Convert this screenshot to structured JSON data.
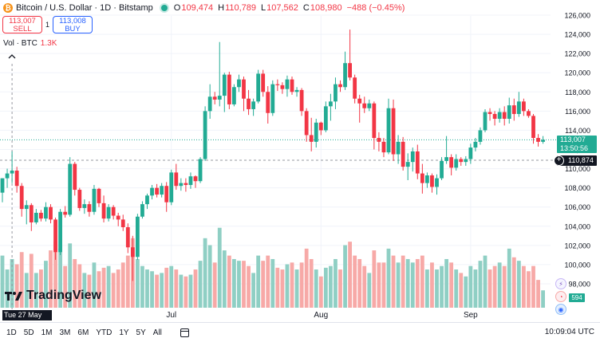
{
  "header": {
    "logo_letter": "₿",
    "symbol": "Bitcoin / U.S. Dollar · 1D · Bitstamp",
    "o_label": "O",
    "o_value": "109,474",
    "h_label": "H",
    "h_value": "110,789",
    "l_label": "L",
    "l_value": "107,562",
    "c_label": "C",
    "c_value": "108,980",
    "change": "−488 (−0.45%)"
  },
  "trade": {
    "sell_price": "113,007",
    "sell_label": "SELL",
    "spread": "1",
    "buy_price": "113,008",
    "buy_label": "BUY"
  },
  "volume_legend": {
    "label": "Vol · BTC",
    "value": "1.3K"
  },
  "crosshair_date": "Tue 27 May '25",
  "logo_text": "TradingView",
  "price_badges": {
    "last_price": "113,007",
    "countdown": "13:50:56",
    "crosshair_price": "110,874",
    "volume": "594"
  },
  "time_ranges": [
    "1D",
    "5D",
    "1M",
    "3M",
    "6M",
    "YTD",
    "1Y",
    "5Y",
    "All"
  ],
  "clock": "10:09:04 UTC",
  "colors": {
    "up": "#22ab94",
    "down": "#f23645",
    "up_vol": "#8fcfc4",
    "down_vol": "#f7a9a7"
  },
  "chart_data": {
    "type": "candlestick",
    "y_ticks": [
      98000,
      100000,
      102000,
      104000,
      106000,
      108000,
      110000,
      112000,
      114000,
      116000,
      118000,
      120000,
      122000,
      124000,
      126000
    ],
    "y_tick_labels": [
      "98,000",
      "100,000",
      "102,000",
      "104,000",
      "106,000",
      "108,000",
      "110,000",
      "112,000",
      "114,000",
      "116,000",
      "118,000",
      "120,000",
      "122,000",
      "124,000",
      "126,000"
    ],
    "x_labels": [
      {
        "label": "Jul",
        "index": 35
      },
      {
        "label": "Aug",
        "index": 66
      },
      {
        "label": "Sep",
        "index": 97
      }
    ],
    "crosshair_index": 2,
    "crosshair_price": 110874,
    "last_price": 113007,
    "candles": [
      {
        "o": 107500,
        "h": 109000,
        "l": 106500,
        "c": 109000,
        "v": 30
      },
      {
        "o": 109000,
        "h": 110000,
        "l": 108000,
        "c": 109500,
        "v": 22
      },
      {
        "o": 109500,
        "h": 111800,
        "l": 108500,
        "c": 109800,
        "v": 28
      },
      {
        "o": 109800,
        "h": 110200,
        "l": 107500,
        "c": 108200,
        "v": 25
      },
      {
        "o": 108200,
        "h": 108500,
        "l": 105000,
        "c": 105800,
        "v": 32
      },
      {
        "o": 105800,
        "h": 106700,
        "l": 104200,
        "c": 106200,
        "v": 20
      },
      {
        "o": 106200,
        "h": 106400,
        "l": 103500,
        "c": 104400,
        "v": 31
      },
      {
        "o": 104400,
        "h": 105800,
        "l": 104200,
        "c": 105400,
        "v": 20
      },
      {
        "o": 105400,
        "h": 105700,
        "l": 104500,
        "c": 104800,
        "v": 22
      },
      {
        "o": 104800,
        "h": 106500,
        "l": 104500,
        "c": 106000,
        "v": 27
      },
      {
        "o": 106000,
        "h": 106300,
        "l": 104300,
        "c": 104700,
        "v": 33
      },
      {
        "o": 104700,
        "h": 104900,
        "l": 100500,
        "c": 101300,
        "v": 38
      },
      {
        "o": 101300,
        "h": 105800,
        "l": 101000,
        "c": 105500,
        "v": 34
      },
      {
        "o": 105500,
        "h": 106100,
        "l": 104900,
        "c": 105200,
        "v": 24
      },
      {
        "o": 105200,
        "h": 111200,
        "l": 105000,
        "c": 110500,
        "v": 37
      },
      {
        "o": 110500,
        "h": 110700,
        "l": 107200,
        "c": 107800,
        "v": 28
      },
      {
        "o": 107800,
        "h": 108000,
        "l": 105600,
        "c": 105900,
        "v": 25
      },
      {
        "o": 105900,
        "h": 106800,
        "l": 105300,
        "c": 106300,
        "v": 20
      },
      {
        "o": 106300,
        "h": 106600,
        "l": 105000,
        "c": 105500,
        "v": 19
      },
      {
        "o": 105500,
        "h": 108300,
        "l": 105200,
        "c": 107900,
        "v": 26
      },
      {
        "o": 107900,
        "h": 108000,
        "l": 106000,
        "c": 106400,
        "v": 21
      },
      {
        "o": 106400,
        "h": 107200,
        "l": 104400,
        "c": 104800,
        "v": 23
      },
      {
        "o": 104800,
        "h": 106300,
        "l": 104500,
        "c": 106000,
        "v": 24
      },
      {
        "o": 106000,
        "h": 106200,
        "l": 104700,
        "c": 105100,
        "v": 20
      },
      {
        "o": 105100,
        "h": 105400,
        "l": 104000,
        "c": 104700,
        "v": 22
      },
      {
        "o": 104700,
        "h": 105200,
        "l": 103500,
        "c": 103900,
        "v": 26
      },
      {
        "o": 103900,
        "h": 104300,
        "l": 101200,
        "c": 101800,
        "v": 30
      },
      {
        "o": 101800,
        "h": 103000,
        "l": 98300,
        "c": 100800,
        "v": 40
      },
      {
        "o": 100800,
        "h": 105300,
        "l": 100500,
        "c": 105000,
        "v": 28
      },
      {
        "o": 105000,
        "h": 106600,
        "l": 104800,
        "c": 106300,
        "v": 24
      },
      {
        "o": 106300,
        "h": 107400,
        "l": 105800,
        "c": 107200,
        "v": 22
      },
      {
        "o": 107200,
        "h": 108300,
        "l": 106800,
        "c": 108000,
        "v": 21
      },
      {
        "o": 108000,
        "h": 108400,
        "l": 107000,
        "c": 107300,
        "v": 19
      },
      {
        "o": 107300,
        "h": 108500,
        "l": 107000,
        "c": 108200,
        "v": 20
      },
      {
        "o": 108200,
        "h": 108600,
        "l": 105500,
        "c": 106500,
        "v": 23
      },
      {
        "o": 106500,
        "h": 109900,
        "l": 106200,
        "c": 109600,
        "v": 24
      },
      {
        "o": 109600,
        "h": 110500,
        "l": 107800,
        "c": 108200,
        "v": 22
      },
      {
        "o": 108200,
        "h": 109000,
        "l": 107700,
        "c": 108500,
        "v": 19
      },
      {
        "o": 108500,
        "h": 109000,
        "l": 107600,
        "c": 108300,
        "v": 18
      },
      {
        "o": 108300,
        "h": 109600,
        "l": 107900,
        "c": 109200,
        "v": 19
      },
      {
        "o": 109200,
        "h": 109300,
        "l": 108000,
        "c": 108700,
        "v": 22
      },
      {
        "o": 108700,
        "h": 111200,
        "l": 108500,
        "c": 111000,
        "v": 27
      },
      {
        "o": 111000,
        "h": 116500,
        "l": 110800,
        "c": 116000,
        "v": 40
      },
      {
        "o": 116000,
        "h": 118800,
        "l": 115200,
        "c": 117500,
        "v": 36
      },
      {
        "o": 117500,
        "h": 118000,
        "l": 116700,
        "c": 117200,
        "v": 26
      },
      {
        "o": 117200,
        "h": 123200,
        "l": 116500,
        "c": 117600,
        "v": 46
      },
      {
        "o": 117600,
        "h": 120000,
        "l": 115900,
        "c": 119800,
        "v": 33
      },
      {
        "o": 119800,
        "h": 120100,
        "l": 116200,
        "c": 116700,
        "v": 30
      },
      {
        "o": 116700,
        "h": 118800,
        "l": 116500,
        "c": 118500,
        "v": 28
      },
      {
        "o": 118500,
        "h": 119800,
        "l": 118000,
        "c": 119300,
        "v": 27
      },
      {
        "o": 119300,
        "h": 119600,
        "l": 116000,
        "c": 117300,
        "v": 27
      },
      {
        "o": 117300,
        "h": 118200,
        "l": 115600,
        "c": 116200,
        "v": 24
      },
      {
        "o": 116200,
        "h": 117300,
        "l": 115500,
        "c": 117000,
        "v": 20
      },
      {
        "o": 117000,
        "h": 120300,
        "l": 116800,
        "c": 119900,
        "v": 30
      },
      {
        "o": 119900,
        "h": 120300,
        "l": 117500,
        "c": 118000,
        "v": 27
      },
      {
        "o": 118000,
        "h": 118600,
        "l": 114700,
        "c": 115800,
        "v": 30
      },
      {
        "o": 115800,
        "h": 119200,
        "l": 115500,
        "c": 118800,
        "v": 28
      },
      {
        "o": 118800,
        "h": 119300,
        "l": 118100,
        "c": 118700,
        "v": 23
      },
      {
        "o": 118700,
        "h": 119000,
        "l": 117800,
        "c": 118300,
        "v": 22
      },
      {
        "o": 118300,
        "h": 119700,
        "l": 117500,
        "c": 119300,
        "v": 25
      },
      {
        "o": 119300,
        "h": 119600,
        "l": 117700,
        "c": 118000,
        "v": 26
      },
      {
        "o": 118000,
        "h": 118500,
        "l": 117500,
        "c": 118200,
        "v": 22
      },
      {
        "o": 118200,
        "h": 118400,
        "l": 115500,
        "c": 116000,
        "v": 26
      },
      {
        "o": 116000,
        "h": 116300,
        "l": 112800,
        "c": 113500,
        "v": 34
      },
      {
        "o": 113500,
        "h": 115300,
        "l": 111800,
        "c": 112800,
        "v": 28
      },
      {
        "o": 112800,
        "h": 115200,
        "l": 112200,
        "c": 114800,
        "v": 22
      },
      {
        "o": 114800,
        "h": 114900,
        "l": 113500,
        "c": 114000,
        "v": 18
      },
      {
        "o": 114000,
        "h": 117000,
        "l": 113800,
        "c": 116500,
        "v": 23
      },
      {
        "o": 116500,
        "h": 117800,
        "l": 115000,
        "c": 117000,
        "v": 24
      },
      {
        "o": 117000,
        "h": 119500,
        "l": 116200,
        "c": 118800,
        "v": 28
      },
      {
        "o": 118800,
        "h": 119200,
        "l": 118000,
        "c": 118500,
        "v": 22
      },
      {
        "o": 118500,
        "h": 122200,
        "l": 118200,
        "c": 121000,
        "v": 36
      },
      {
        "o": 121000,
        "h": 124500,
        "l": 119200,
        "c": 119500,
        "v": 38
      },
      {
        "o": 119500,
        "h": 119800,
        "l": 116800,
        "c": 117300,
        "v": 30
      },
      {
        "o": 117300,
        "h": 117700,
        "l": 114800,
        "c": 116800,
        "v": 28
      },
      {
        "o": 116800,
        "h": 117500,
        "l": 115800,
        "c": 116300,
        "v": 24
      },
      {
        "o": 116300,
        "h": 117200,
        "l": 116000,
        "c": 116800,
        "v": 20
      },
      {
        "o": 116800,
        "h": 117000,
        "l": 112000,
        "c": 113200,
        "v": 33
      },
      {
        "o": 113200,
        "h": 113800,
        "l": 111800,
        "c": 112800,
        "v": 26
      },
      {
        "o": 112800,
        "h": 113200,
        "l": 111200,
        "c": 111700,
        "v": 26
      },
      {
        "o": 111700,
        "h": 117300,
        "l": 111500,
        "c": 116300,
        "v": 34
      },
      {
        "o": 116300,
        "h": 117200,
        "l": 110800,
        "c": 111500,
        "v": 30
      },
      {
        "o": 111500,
        "h": 113500,
        "l": 110500,
        "c": 112800,
        "v": 26
      },
      {
        "o": 112800,
        "h": 113300,
        "l": 109800,
        "c": 110200,
        "v": 30
      },
      {
        "o": 110200,
        "h": 111600,
        "l": 108800,
        "c": 110700,
        "v": 28
      },
      {
        "o": 110700,
        "h": 112200,
        "l": 109700,
        "c": 111800,
        "v": 26
      },
      {
        "o": 111800,
        "h": 112500,
        "l": 108900,
        "c": 109500,
        "v": 28
      },
      {
        "o": 109500,
        "h": 110500,
        "l": 107400,
        "c": 108500,
        "v": 30
      },
      {
        "o": 108500,
        "h": 109600,
        "l": 108000,
        "c": 109300,
        "v": 22
      },
      {
        "o": 109300,
        "h": 109500,
        "l": 107500,
        "c": 108100,
        "v": 26
      },
      {
        "o": 108100,
        "h": 109400,
        "l": 107300,
        "c": 109000,
        "v": 22
      },
      {
        "o": 109000,
        "h": 111200,
        "l": 108800,
        "c": 110800,
        "v": 24
      },
      {
        "o": 110800,
        "h": 113400,
        "l": 110500,
        "c": 111200,
        "v": 28
      },
      {
        "o": 111200,
        "h": 111500,
        "l": 109300,
        "c": 110100,
        "v": 26
      },
      {
        "o": 110100,
        "h": 111500,
        "l": 109800,
        "c": 111000,
        "v": 22
      },
      {
        "o": 111000,
        "h": 111200,
        "l": 110300,
        "c": 110700,
        "v": 20
      },
      {
        "o": 110700,
        "h": 111300,
        "l": 110300,
        "c": 111000,
        "v": 18
      },
      {
        "o": 111000,
        "h": 112600,
        "l": 110500,
        "c": 112200,
        "v": 24
      },
      {
        "o": 112200,
        "h": 113200,
        "l": 111800,
        "c": 112800,
        "v": 22
      },
      {
        "o": 112800,
        "h": 114300,
        "l": 112500,
        "c": 114000,
        "v": 27
      },
      {
        "o": 114000,
        "h": 116200,
        "l": 113800,
        "c": 115900,
        "v": 30
      },
      {
        "o": 115900,
        "h": 116300,
        "l": 115000,
        "c": 115700,
        "v": 22
      },
      {
        "o": 115700,
        "h": 116000,
        "l": 114500,
        "c": 115200,
        "v": 24
      },
      {
        "o": 115200,
        "h": 116300,
        "l": 114800,
        "c": 115900,
        "v": 26
      },
      {
        "o": 115900,
        "h": 116500,
        "l": 114500,
        "c": 115200,
        "v": 24
      },
      {
        "o": 115200,
        "h": 117400,
        "l": 114700,
        "c": 116600,
        "v": 34
      },
      {
        "o": 116600,
        "h": 117300,
        "l": 115000,
        "c": 115700,
        "v": 29
      },
      {
        "o": 115700,
        "h": 118000,
        "l": 115400,
        "c": 117000,
        "v": 27
      },
      {
        "o": 117000,
        "h": 117300,
        "l": 115500,
        "c": 116000,
        "v": 24
      },
      {
        "o": 116000,
        "h": 116200,
        "l": 115300,
        "c": 115500,
        "v": 21
      },
      {
        "o": 115500,
        "h": 115700,
        "l": 112600,
        "c": 113200,
        "v": 24
      },
      {
        "o": 113200,
        "h": 113600,
        "l": 112300,
        "c": 112800,
        "v": 16
      },
      {
        "o": 112800,
        "h": 113400,
        "l": 112600,
        "c": 113007,
        "v": 10
      }
    ]
  }
}
